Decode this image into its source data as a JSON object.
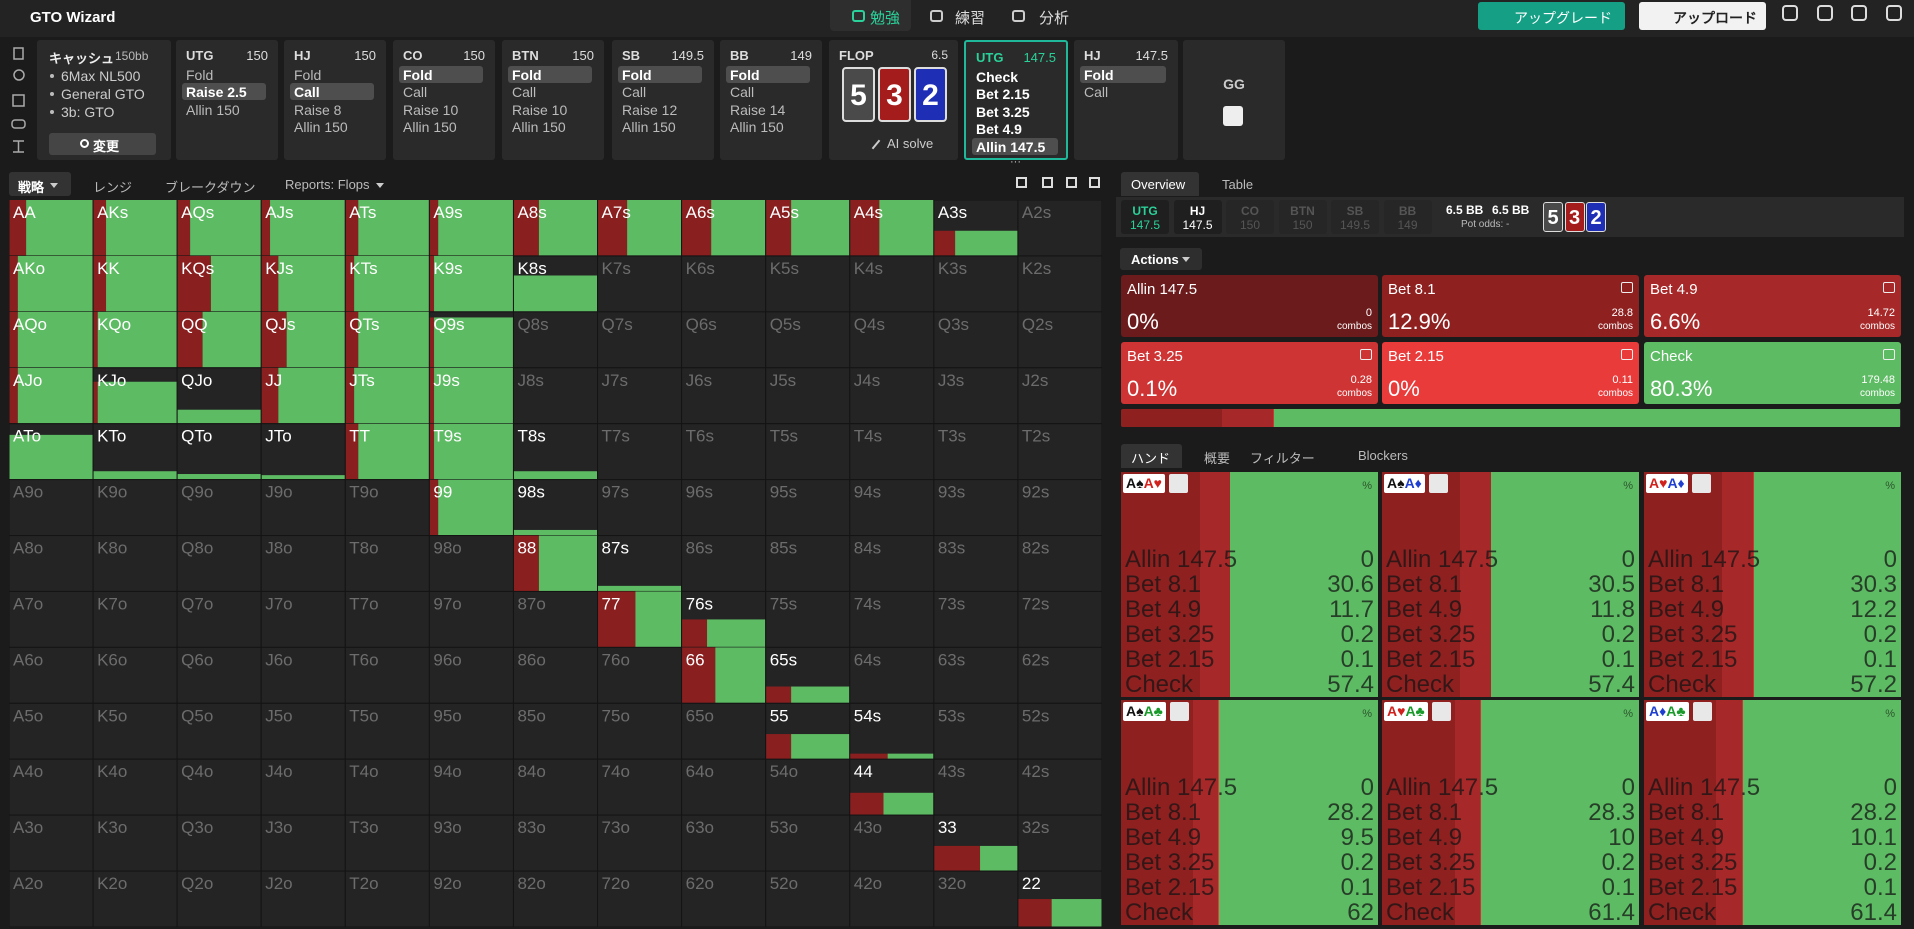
{
  "header": {
    "brand": "GTO Wizard",
    "nav": [
      "勉強",
      "練習",
      "分析"
    ],
    "upgrade": "アップグレード",
    "upload": "アップロード"
  },
  "settings": {
    "title": "キャッシュ",
    "stack": "150bb",
    "lines": [
      "6Max NL500",
      "General GTO",
      "3b: GTO"
    ],
    "button": "変更"
  },
  "positions": [
    {
      "name": "UTG",
      "stack": 150,
      "actions": [
        "Fold",
        "Raise 2.5",
        "Allin 150"
      ],
      "selected": 1
    },
    {
      "name": "HJ",
      "stack": 150,
      "actions": [
        "Fold",
        "Call",
        "Raise 8",
        "Allin 150"
      ],
      "selected": 1
    },
    {
      "name": "CO",
      "stack": 150,
      "actions": [
        "Fold",
        "Call",
        "Raise 10",
        "Allin 150"
      ],
      "selected": 0
    },
    {
      "name": "BTN",
      "stack": 150,
      "actions": [
        "Fold",
        "Call",
        "Raise 10",
        "Allin 150"
      ],
      "selected": 0
    },
    {
      "name": "SB",
      "stack": 149.5,
      "actions": [
        "Fold",
        "Call",
        "Raise 12",
        "Allin 150"
      ],
      "selected": 0
    },
    {
      "name": "BB",
      "stack": 149,
      "actions": [
        "Fold",
        "Call",
        "Raise 14",
        "Allin 150"
      ],
      "selected": 0
    }
  ],
  "flop": {
    "name": "FLOP",
    "pot": 6.5,
    "cards": [
      "5",
      "3",
      "2"
    ],
    "card_colors": [
      "#4a4a4a",
      "#a51c1c",
      "#1f2fb5"
    ],
    "solve": "AI solve"
  },
  "street": [
    {
      "name": "UTG",
      "stack": 147.5,
      "actions": [
        "Check",
        "Bet 2.15",
        "Bet 3.25",
        "Bet 4.9",
        "Allin 147.5"
      ],
      "selected": 4,
      "active": true,
      "more": "···"
    },
    {
      "name": "HJ",
      "stack": 147.5,
      "actions": [
        "Fold",
        "Call"
      ],
      "selected": 0
    }
  ],
  "gg": "GG",
  "tabs": [
    "戦略",
    "レンジ",
    "ブレークダウン",
    "Reports: Flops"
  ],
  "matrix": {
    "hands": [
      [
        "AA",
        "AKs",
        "AQs",
        "AJs",
        "ATs",
        "A9s",
        "A8s",
        "A7s",
        "A6s",
        "A5s",
        "A4s",
        "A3s",
        "A2s"
      ],
      [
        "AKo",
        "KK",
        "KQs",
        "KJs",
        "KTs",
        "K9s",
        "K8s",
        "K7s",
        "K6s",
        "K5s",
        "K4s",
        "K3s",
        "K2s"
      ],
      [
        "AQo",
        "KQo",
        "QQ",
        "QJs",
        "QTs",
        "Q9s",
        "Q8s",
        "Q7s",
        "Q6s",
        "Q5s",
        "Q4s",
        "Q3s",
        "Q2s"
      ],
      [
        "AJo",
        "KJo",
        "QJo",
        "JJ",
        "JTs",
        "J9s",
        "J8s",
        "J7s",
        "J6s",
        "J5s",
        "J4s",
        "J3s",
        "J2s"
      ],
      [
        "ATo",
        "KTo",
        "QTo",
        "JTo",
        "TT",
        "T9s",
        "T8s",
        "T7s",
        "T6s",
        "T5s",
        "T4s",
        "T3s",
        "T2s"
      ],
      [
        "A9o",
        "K9o",
        "Q9o",
        "J9o",
        "T9o",
        "99",
        "98s",
        "97s",
        "96s",
        "95s",
        "94s",
        "93s",
        "92s"
      ],
      [
        "A8o",
        "K8o",
        "Q8o",
        "J8o",
        "T8o",
        "98o",
        "88",
        "87s",
        "86s",
        "85s",
        "84s",
        "83s",
        "82s"
      ],
      [
        "A7o",
        "K7o",
        "Q7o",
        "J7o",
        "T7o",
        "97o",
        "87o",
        "77",
        "76s",
        "75s",
        "74s",
        "73s",
        "72s"
      ],
      [
        "A6o",
        "K6o",
        "Q6o",
        "J6o",
        "T6o",
        "96o",
        "86o",
        "76o",
        "66",
        "65s",
        "64s",
        "63s",
        "62s"
      ],
      [
        "A5o",
        "K5o",
        "Q5o",
        "J5o",
        "T5o",
        "95o",
        "85o",
        "75o",
        "65o",
        "55",
        "54s",
        "53s",
        "52s"
      ],
      [
        "A4o",
        "K4o",
        "Q4o",
        "J4o",
        "T4o",
        "94o",
        "84o",
        "74o",
        "64o",
        "54o",
        "44",
        "43s",
        "42s"
      ],
      [
        "A3o",
        "K3o",
        "Q3o",
        "J3o",
        "T3o",
        "93o",
        "83o",
        "73o",
        "63o",
        "53o",
        "43o",
        "33",
        "32s"
      ],
      [
        "A2o",
        "K2o",
        "Q2o",
        "J2o",
        "T2o",
        "92o",
        "82o",
        "72o",
        "62o",
        "52o",
        "42o",
        "32o",
        "22"
      ]
    ],
    "weights": [
      [
        1,
        1,
        1,
        1,
        1,
        1,
        1,
        1,
        1,
        1,
        1,
        0.45,
        0
      ],
      [
        1,
        1,
        1,
        1,
        1,
        1,
        0.65,
        0,
        0,
        0,
        0,
        0,
        0
      ],
      [
        1,
        1,
        1,
        1,
        1,
        0.9,
        0,
        0,
        0,
        0,
        0,
        0,
        0
      ],
      [
        1,
        0.75,
        0.25,
        1,
        1,
        1,
        0,
        0,
        0,
        0,
        0,
        0,
        0
      ],
      [
        0.8,
        0.15,
        0.1,
        0.08,
        1,
        1,
        0.15,
        0,
        0,
        0,
        0,
        0,
        0
      ],
      [
        0,
        0,
        0,
        0,
        0,
        1,
        0.1,
        0,
        0,
        0,
        0,
        0,
        0
      ],
      [
        0,
        0,
        0,
        0,
        0,
        0,
        1,
        0.1,
        0,
        0,
        0,
        0,
        0
      ],
      [
        0,
        0,
        0,
        0,
        0,
        0,
        0,
        1,
        0.5,
        0,
        0,
        0,
        0
      ],
      [
        0,
        0,
        0,
        0,
        0,
        0,
        0,
        0,
        1,
        0.3,
        0,
        0,
        0
      ],
      [
        0,
        0,
        0,
        0,
        0,
        0,
        0,
        0,
        0,
        0.45,
        0.1,
        0,
        0
      ],
      [
        0,
        0,
        0,
        0,
        0,
        0,
        0,
        0,
        0,
        0,
        0.4,
        0,
        0
      ],
      [
        0,
        0,
        0,
        0,
        0,
        0,
        0,
        0,
        0,
        0,
        0,
        0.45,
        0
      ],
      [
        0,
        0,
        0,
        0,
        0,
        0,
        0,
        0,
        0,
        0,
        0,
        0,
        0.5
      ]
    ],
    "aggr": [
      [
        0.2,
        0.15,
        0.15,
        0.1,
        0.15,
        0.1,
        0.3,
        0.35,
        0.35,
        0.3,
        0.35,
        0.25,
        0
      ],
      [
        0.1,
        0.15,
        0.4,
        0.2,
        0.1,
        0.05,
        0,
        0,
        0,
        0,
        0,
        0,
        0
      ],
      [
        0.1,
        0.05,
        0.3,
        0.3,
        0.15,
        0.05,
        0,
        0,
        0,
        0,
        0,
        0,
        0
      ],
      [
        0.1,
        0.05,
        0,
        0.2,
        0.1,
        0.05,
        0,
        0,
        0,
        0,
        0,
        0,
        0
      ],
      [
        0,
        0,
        0,
        0,
        0.15,
        0.05,
        0,
        0,
        0,
        0,
        0,
        0,
        0
      ],
      [
        0,
        0,
        0,
        0,
        0,
        0.1,
        0,
        0,
        0,
        0,
        0,
        0,
        0
      ],
      [
        0,
        0,
        0,
        0,
        0,
        0,
        0.3,
        0,
        0,
        0,
        0,
        0,
        0
      ],
      [
        0,
        0,
        0,
        0,
        0,
        0,
        0,
        0.45,
        0.3,
        0,
        0,
        0,
        0
      ],
      [
        0,
        0,
        0,
        0,
        0,
        0,
        0,
        0,
        0.4,
        0.3,
        0,
        0,
        0
      ],
      [
        0,
        0,
        0,
        0,
        0,
        0,
        0,
        0,
        0,
        0.3,
        0.45,
        0,
        0
      ],
      [
        0,
        0,
        0,
        0,
        0,
        0,
        0,
        0,
        0,
        0,
        0.4,
        0,
        0
      ],
      [
        0,
        0,
        0,
        0,
        0,
        0,
        0,
        0,
        0,
        0,
        0,
        0.55,
        0
      ],
      [
        0,
        0,
        0,
        0,
        0,
        0,
        0,
        0,
        0,
        0,
        0,
        0,
        0.4
      ]
    ]
  },
  "overview": {
    "tabs": [
      "Overview",
      "Table"
    ],
    "players": [
      {
        "name": "UTG",
        "stack": 147.5
      },
      {
        "name": "HJ",
        "stack": 147.5
      },
      {
        "name": "CO",
        "stack": 150
      },
      {
        "name": "BTN",
        "stack": 150
      },
      {
        "name": "SB",
        "stack": 149.5
      },
      {
        "name": "BB",
        "stack": 149
      }
    ],
    "pot_labels": [
      "6.5 BB",
      "6.5 BB"
    ],
    "pot_odds": "Pot odds: -",
    "board": [
      "5",
      "3",
      "2"
    ]
  },
  "actions": {
    "title": "Actions",
    "combos_label": "combos",
    "items": [
      {
        "name": "Allin 147.5",
        "freq": 0,
        "freq_label": "0%",
        "combos": 0,
        "color": "#6b1b1b"
      },
      {
        "name": "Bet 8.1",
        "freq": 12.9,
        "freq_label": "12.9%",
        "combos": 28.8,
        "color": "#8e2020"
      },
      {
        "name": "Bet 4.9",
        "freq": 6.6,
        "freq_label": "6.6%",
        "combos": 14.72,
        "color": "#a72828"
      },
      {
        "name": "Bet 3.25",
        "freq": 0.1,
        "freq_label": "0.1%",
        "combos": 0.28,
        "color": "#cf3434"
      },
      {
        "name": "Bet 2.15",
        "freq": 0,
        "freq_label": "0%",
        "combos": 0.11,
        "color": "#ea3b3b"
      },
      {
        "name": "Check",
        "freq": 80.3,
        "freq_label": "80.3%",
        "combos": 179.48,
        "color": "#5dbb63"
      }
    ]
  },
  "hand_tabs": [
    "ハンド",
    "概要",
    "フィルター",
    "Blockers"
  ],
  "hands": {
    "unit": "%",
    "items": [
      {
        "cards": [
          "A♠",
          "A♥"
        ],
        "values": [
          0,
          30.6,
          11.7,
          0.2,
          0.1,
          57.4
        ]
      },
      {
        "cards": [
          "A♠",
          "A♦"
        ],
        "values": [
          0,
          30.5,
          11.8,
          0.2,
          0.1,
          57.4
        ]
      },
      {
        "cards": [
          "A♥",
          "A♦"
        ],
        "values": [
          0,
          30.3,
          12.2,
          0.2,
          0.1,
          57.2
        ]
      },
      {
        "cards": [
          "A♠",
          "A♣"
        ],
        "values": [
          0,
          28.2,
          9.5,
          0.2,
          0.1,
          62
        ]
      },
      {
        "cards": [
          "A♥",
          "A♣"
        ],
        "values": [
          0,
          28.3,
          10,
          0.2,
          0.1,
          61.4
        ]
      },
      {
        "cards": [
          "A♦",
          "A♣"
        ],
        "values": [
          0,
          28.2,
          10.1,
          0.2,
          0.1,
          61.4
        ]
      }
    ]
  }
}
